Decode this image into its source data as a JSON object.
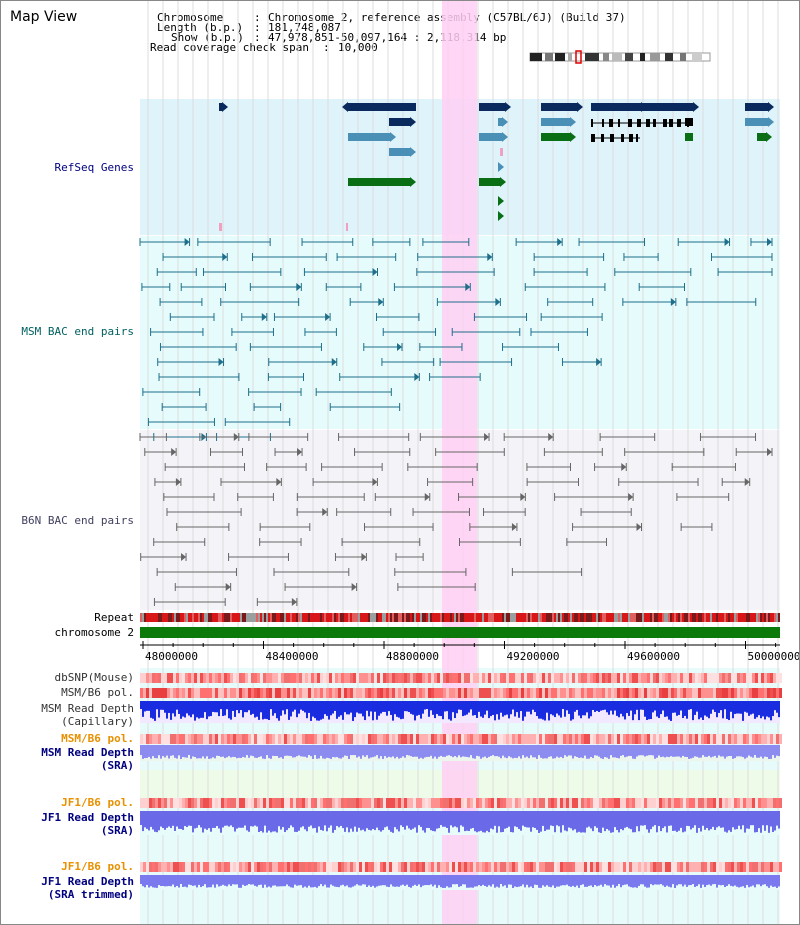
{
  "page": {
    "title": "Map View"
  },
  "info": {
    "chromosome": {
      "key": "Chromosome",
      "value": "Chromosome 2, reference assembly (C57BL/6J) (Build 37)"
    },
    "length": {
      "key": "Length (b.p.)",
      "value": "181,748,087"
    },
    "show": {
      "key": "Show (b.p.)",
      "value": "47,978,851-50,097,164 : 2,118,314 bp"
    },
    "coverage": {
      "key": "Read coverage check span",
      "value": "10,000"
    }
  },
  "axis": {
    "ticks": [
      {
        "label": "48000000",
        "value": 48000000
      },
      {
        "label": "48400000",
        "value": 48400000
      },
      {
        "label": "48800000",
        "value": 48800000
      },
      {
        "label": "49200000",
        "value": 49200000
      },
      {
        "label": "49600000",
        "value": 49600000
      },
      {
        "label": "50000000",
        "value": 50000000
      }
    ]
  },
  "tracks": {
    "refseq": {
      "label": "RefSeq Genes"
    },
    "msm_bac": {
      "label": "MSM BAC end pairs"
    },
    "b6n_bac": {
      "label": "B6N BAC end pairs"
    },
    "repeat": {
      "label": "Repeat"
    },
    "chromosome": {
      "label": "chromosome 2"
    },
    "dbsnp": {
      "label": "dbSNP(Mouse)"
    },
    "msm_pol1": {
      "label": "MSM/B6 pol."
    },
    "msm_depth_cap": {
      "label1": "MSM Read Depth",
      "label2": "(Capillary)"
    },
    "msm_pol2": {
      "label": "MSM/B6 pol."
    },
    "msm_depth_sra": {
      "label1": "MSM Read Depth",
      "label2": "(SRA)"
    },
    "jf1_pol1": {
      "label": "JF1/B6 pol."
    },
    "jf1_depth_sra": {
      "label1": "JF1 Read Depth",
      "label2": "(SRA)"
    },
    "jf1_pol2": {
      "label": "JF1/B6 pol."
    },
    "jf1_depth_trim": {
      "label1": "JF1 Read Depth",
      "label2": "(SRA trimmed)"
    }
  },
  "colors": {
    "gene_navy": "#0a2a5e",
    "gene_blue": "#4a8fb5",
    "gene_green": "#0a6e14",
    "msm_line": "#1f6f8b",
    "b6n_line": "#666666",
    "highlight": "#ffcff3",
    "refseq_bg": "#dff3fb",
    "msm_bg": "#e6fbfb",
    "b6n_bg": "#f4f4f8",
    "label_navy": "#000080",
    "label_teal": "#006060",
    "label_orange": "#e89000"
  }
}
